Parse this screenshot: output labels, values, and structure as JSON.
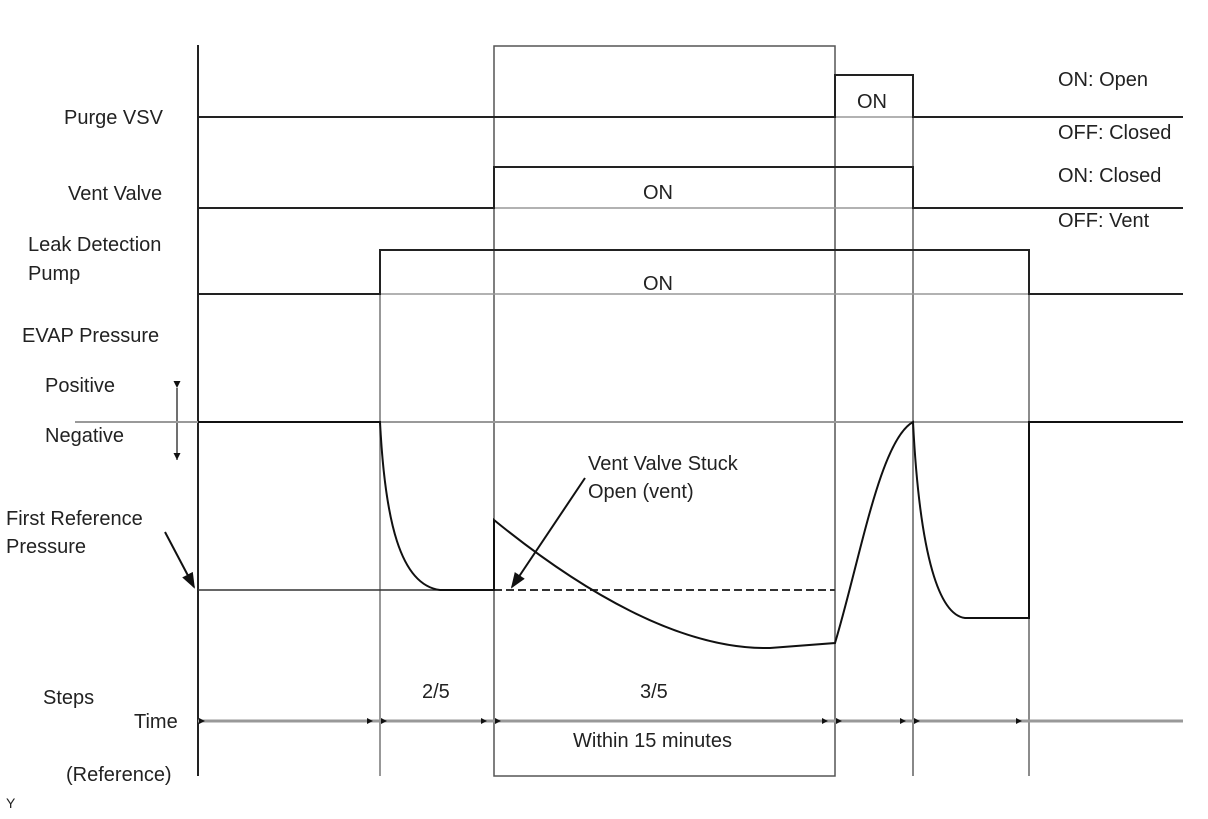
{
  "signals": {
    "purge_vsv": {
      "label": "Purge VSV",
      "on_label": "ON",
      "legend_on": "ON: Open",
      "legend_off": "OFF: Closed"
    },
    "vent_valve": {
      "label": "Vent Valve",
      "on_label": "ON",
      "legend_on": "ON: Closed",
      "legend_off": "OFF: Vent"
    },
    "leak_pump": {
      "label_line1": "Leak Detection",
      "label_line2": "Pump",
      "on_label": "ON"
    },
    "evap": {
      "label": "EVAP Pressure",
      "positive": "Positive",
      "negative": "Negative",
      "ref_line1": "First Reference",
      "ref_line2": "Pressure",
      "annotation_line1": "Vent Valve Stuck",
      "annotation_line2": "Open (vent)"
    }
  },
  "timeline": {
    "steps_label": "Steps",
    "time_label": "Time",
    "reference_label": "(Reference)",
    "step_2": "2/5",
    "step_3": "3/5",
    "duration": "Within 15 minutes"
  },
  "corner_mark": "Y"
}
